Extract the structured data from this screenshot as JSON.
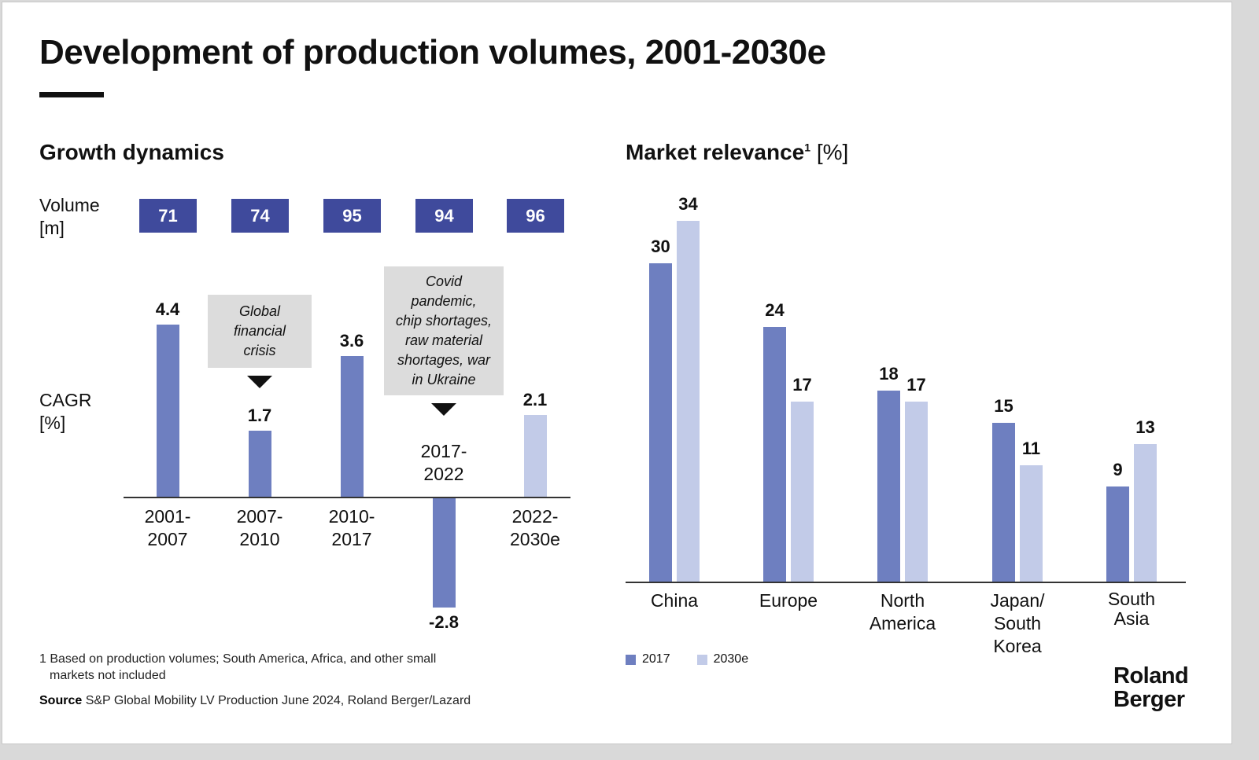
{
  "title": "Development of production volumes, 2001-2030e",
  "colors": {
    "dark": "#6e7fc0",
    "light": "#c2cbe8",
    "volume_box": "#3f4a9c",
    "annotation_box": "#dcdcdc"
  },
  "chart_data": [
    {
      "type": "bar",
      "title": "Growth dynamics",
      "volume_label": [
        "Volume",
        "[m]"
      ],
      "cagr_label": [
        "CAGR",
        "[%]"
      ],
      "categories": [
        [
          "2001-",
          "2007"
        ],
        [
          "2007-",
          "2010"
        ],
        [
          "2010-",
          "2017"
        ],
        [
          "2017-",
          "2022"
        ],
        [
          "2022-",
          "2030e"
        ]
      ],
      "volumes": [
        "71",
        "74",
        "95",
        "94",
        "96"
      ],
      "values": [
        4.4,
        1.7,
        3.6,
        -2.8,
        2.1
      ],
      "value_labels": [
        "4.4",
        "1.7",
        "3.6",
        "-2.8",
        "2.1"
      ],
      "bar_colors": [
        "dark",
        "dark",
        "dark",
        "dark",
        "light"
      ],
      "annotations": [
        {
          "category_index": 1,
          "text": [
            "Global",
            "financial",
            "crisis"
          ]
        },
        {
          "category_index": 3,
          "text": [
            "Covid",
            "pandemic,",
            "chip shortages,",
            "raw material",
            "shortages, war",
            "in Ukraine"
          ]
        }
      ]
    },
    {
      "type": "bar",
      "title": "Market relevance",
      "title_sup": "1",
      "unit": "[%]",
      "categories": [
        [
          "China"
        ],
        [
          "Europe"
        ],
        [
          "North",
          "America"
        ],
        [
          "Japan/",
          "South",
          "Korea"
        ],
        [
          "South",
          "Asia"
        ]
      ],
      "series": [
        {
          "name": "2017",
          "color": "dark",
          "values": [
            30,
            24,
            18,
            15,
            9
          ]
        },
        {
          "name": "2030e",
          "color": "light",
          "values": [
            34,
            17,
            17,
            11,
            13
          ]
        }
      ],
      "legend_placement": "bottom-left"
    }
  ],
  "footnote": {
    "marker": "1",
    "lines": [
      "Based on production volumes; South America, Africa, and other small",
      "markets not included"
    ]
  },
  "source": {
    "label": "Source",
    "text": "S&P Global Mobility LV Production June 2024, Roland Berger/Lazard"
  },
  "logo": [
    "Roland",
    "Berger"
  ]
}
